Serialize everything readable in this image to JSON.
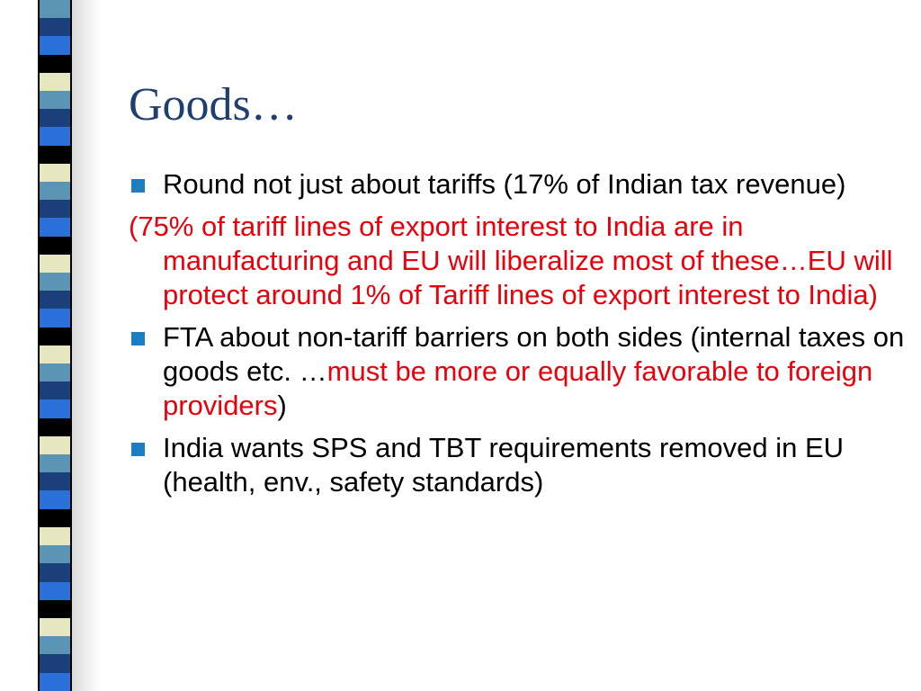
{
  "slide": {
    "title": "Goods…",
    "items": [
      {
        "text": "Round not just about tariffs (17% of Indian tax revenue)"
      },
      {
        "lead": "(75% of tariff lines of export interest to India are",
        "rest": " in manufacturing and EU will liberalize most of these…EU will protect around 1% of Tariff lines of export interest to India)"
      },
      {
        "text_a": "FTA about non-tariff barriers on both sides (internal taxes on goods etc. …",
        "text_red": "must be more or equally favorable to foreign providers",
        "text_b": ")"
      },
      {
        "text": "India wants SPS and TBT requirements removed in EU (health, env., safety standards)"
      }
    ]
  },
  "decor": {
    "bullet_color": "#1a7fc0",
    "title_color": "#1f3f6e",
    "highlight_color": "#e8000b",
    "stripe_colors": [
      "#5b95b3",
      "#1a3f7a",
      "#2a70d8",
      "#000000",
      "#e6e6c0",
      "#5b95b3",
      "#1a3f7a",
      "#2a70d8",
      "#000000",
      "#e6e6c0",
      "#5b95b3",
      "#1a3f7a",
      "#2a70d8",
      "#000000",
      "#e6e6c0",
      "#5b95b3",
      "#1a3f7a",
      "#2a70d8",
      "#000000",
      "#e6e6c0",
      "#5b95b3",
      "#1a3f7a",
      "#2a70d8",
      "#000000",
      "#e6e6c0",
      "#5b95b3",
      "#1a3f7a",
      "#2a70d8",
      "#000000",
      "#e6e6c0",
      "#5b95b3",
      "#1a3f7a",
      "#2a70d8",
      "#000000",
      "#e6e6c0",
      "#5b95b3",
      "#1a3f7a",
      "#2a70d8"
    ]
  }
}
